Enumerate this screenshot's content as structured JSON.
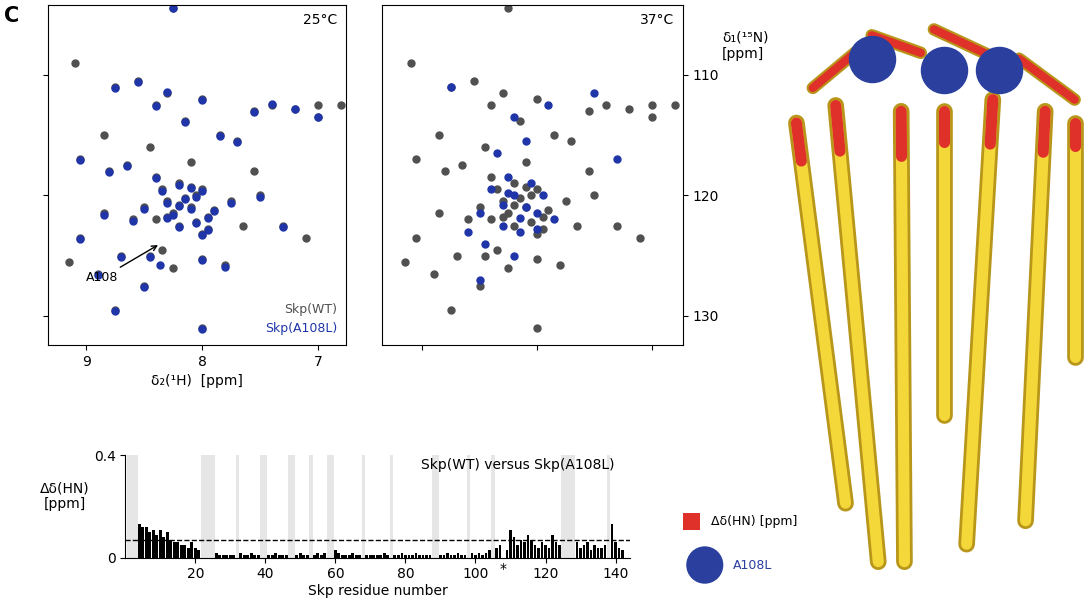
{
  "panel_label": "C",
  "chart_data": [
    {
      "type": "scatter",
      "title": "25°C",
      "x_label": "δ₂(¹H)  [ppm]",
      "xlim": [
        9.33,
        6.76
      ],
      "xticks": [
        9,
        8,
        7
      ],
      "ylim": [
        132.4,
        104.2
      ],
      "yticks": [
        110,
        120,
        130
      ],
      "tick_labels": "x",
      "marker": "o",
      "series": [
        {
          "name": "Skp(WT)",
          "color": "#505050",
          "x": [
            9.1,
            8.25,
            8.55,
            8.75,
            8.3,
            8.4,
            8.0,
            8.15,
            7.55,
            7.4,
            7.2,
            7.0,
            7.0,
            6.8,
            7.85,
            7.7,
            9.05,
            8.65,
            8.8,
            8.4,
            8.2,
            8.0,
            8.3,
            8.1,
            7.9,
            8.5,
            8.6,
            8.2,
            7.95,
            8.05,
            7.75,
            7.5,
            7.3,
            7.1,
            8.85,
            9.05,
            9.15,
            8.9,
            8.7,
            8.45,
            8.35,
            8.0,
            7.8,
            7.65,
            8.75,
            8.0,
            8.5,
            8.25,
            7.55,
            8.85,
            8.45,
            8.1,
            8.15,
            8.25,
            8.35,
            7.95,
            8.05,
            8.2,
            8.1,
            8.3,
            8.0,
            8.4
          ],
          "y": [
            109.0,
            104.5,
            110.5,
            111.0,
            111.5,
            112.5,
            112.0,
            113.8,
            113.0,
            112.5,
            112.8,
            112.5,
            113.5,
            112.5,
            115.0,
            115.5,
            117.0,
            117.5,
            118.0,
            118.5,
            119.0,
            119.5,
            120.5,
            121.0,
            121.2,
            121.0,
            122.0,
            122.5,
            122.8,
            120.0,
            120.5,
            120.0,
            122.5,
            123.5,
            121.5,
            123.5,
            125.5,
            126.5,
            125.0,
            125.0,
            124.5,
            125.3,
            125.8,
            122.5,
            129.5,
            131.0,
            127.5,
            126.0,
            118.0,
            115.0,
            116.0,
            117.2,
            120.2,
            121.5,
            119.5,
            121.8,
            122.2,
            120.8,
            119.3,
            121.8,
            123.2,
            122.0
          ]
        },
        {
          "name": "Skp(A108L)",
          "color": "#1f35a8",
          "x": [
            8.25,
            8.55,
            8.75,
            8.3,
            8.4,
            8.0,
            8.15,
            7.55,
            7.4,
            7.2,
            7.0,
            7.85,
            7.7,
            9.05,
            8.65,
            8.8,
            8.4,
            8.2,
            8.0,
            8.3,
            8.1,
            7.9,
            8.5,
            8.6,
            8.2,
            7.95,
            8.05,
            7.75,
            7.5,
            7.3,
            8.85,
            9.05,
            8.9,
            8.7,
            8.45,
            8.36,
            8.0,
            7.8,
            8.75,
            8.0,
            8.5,
            8.15,
            8.25,
            8.35,
            7.95,
            8.05,
            8.2,
            8.1,
            8.3,
            8.0
          ],
          "y": [
            104.5,
            110.6,
            111.1,
            111.4,
            112.6,
            112.1,
            113.9,
            113.1,
            112.4,
            112.8,
            113.5,
            115.1,
            115.6,
            117.1,
            117.6,
            118.1,
            118.6,
            119.1,
            119.6,
            120.6,
            121.1,
            121.3,
            121.1,
            122.1,
            122.6,
            122.9,
            120.1,
            120.6,
            120.1,
            122.6,
            121.6,
            123.6,
            126.6,
            125.1,
            125.1,
            125.8,
            125.4,
            125.9,
            129.6,
            131.1,
            127.6,
            120.3,
            121.6,
            119.6,
            121.9,
            122.3,
            120.9,
            119.4,
            121.9,
            123.3
          ]
        }
      ],
      "annotations": [
        {
          "text": "A108",
          "x": 8.36,
          "y": 124.0
        }
      ]
    },
    {
      "type": "scatter",
      "title": "37°C",
      "y_label": "δ₁(¹⁵N)\n[ppm]",
      "xlim": [
        9.35,
        6.73
      ],
      "xticks": [
        9,
        8,
        7
      ],
      "ylim": [
        132.4,
        104.2
      ],
      "yticks": [
        110,
        120,
        130
      ],
      "tick_labels": "y",
      "marker": "o",
      "series": [
        {
          "name": "Skp(WT)",
          "color": "#505050",
          "x": [
            9.1,
            8.25,
            8.55,
            8.75,
            8.3,
            8.4,
            8.0,
            8.15,
            7.55,
            7.4,
            7.2,
            7.0,
            7.0,
            6.8,
            7.85,
            7.7,
            9.05,
            8.65,
            8.8,
            8.4,
            8.2,
            8.0,
            8.3,
            8.1,
            7.9,
            8.5,
            8.6,
            8.2,
            7.95,
            8.05,
            7.75,
            7.5,
            7.3,
            7.1,
            8.85,
            9.05,
            9.15,
            8.9,
            8.7,
            8.45,
            8.35,
            8.0,
            7.8,
            7.65,
            8.75,
            8.0,
            8.5,
            8.25,
            7.55,
            8.85,
            8.45,
            8.1,
            8.15,
            8.25,
            8.35,
            7.95,
            8.05,
            8.2,
            8.1,
            8.3,
            8.0,
            8.4
          ],
          "y": [
            109.0,
            104.5,
            110.5,
            111.0,
            111.5,
            112.5,
            112.0,
            113.8,
            113.0,
            112.5,
            112.8,
            112.5,
            113.5,
            112.5,
            115.0,
            115.5,
            117.0,
            117.5,
            118.0,
            118.5,
            119.0,
            119.5,
            120.5,
            121.0,
            121.2,
            121.0,
            122.0,
            122.5,
            122.8,
            120.0,
            120.5,
            120.0,
            122.5,
            123.5,
            121.5,
            123.5,
            125.5,
            126.5,
            125.0,
            125.0,
            124.5,
            125.3,
            125.8,
            122.5,
            129.5,
            131.0,
            127.5,
            126.0,
            118.0,
            115.0,
            116.0,
            117.2,
            120.2,
            121.5,
            119.5,
            121.8,
            122.2,
            120.8,
            119.3,
            121.8,
            123.2,
            122.0
          ]
        },
        {
          "name": "Skp(A108L)",
          "color": "#1f35a8",
          "x": [
            8.4,
            8.2,
            8.1,
            8.0,
            8.3,
            8.15,
            7.95,
            8.5,
            8.25,
            8.05,
            7.85,
            8.45,
            8.2,
            8.6,
            8.35,
            8.1,
            7.9,
            7.5,
            8.75,
            8.2,
            7.3,
            8.5,
            8.3,
            8.0,
            8.15,
            8.25
          ],
          "y": [
            119.5,
            120.0,
            121.0,
            121.5,
            122.5,
            123.0,
            120.0,
            121.5,
            118.5,
            119.0,
            122.0,
            124.0,
            125.0,
            123.0,
            116.5,
            115.5,
            112.5,
            111.5,
            111.0,
            113.5,
            117.0,
            127.0,
            120.8,
            122.8,
            121.9,
            119.8
          ]
        }
      ]
    },
    {
      "type": "bar",
      "title": "Skp(WT) versus Skp(A108L)",
      "x_label": "Skp residue number",
      "y_label": "Δδ(HN)\n[ppm]",
      "color": "#000000",
      "x": [
        1,
        2,
        3,
        4,
        5,
        6,
        7,
        8,
        9,
        10,
        11,
        12,
        13,
        14,
        15,
        16,
        17,
        18,
        19,
        20,
        21,
        22,
        23,
        24,
        25,
        26,
        27,
        28,
        29,
        30,
        31,
        32,
        33,
        34,
        35,
        36,
        37,
        38,
        39,
        40,
        41,
        42,
        43,
        44,
        45,
        46,
        47,
        48,
        49,
        50,
        51,
        52,
        53,
        54,
        55,
        56,
        57,
        58,
        59,
        60,
        61,
        62,
        63,
        64,
        65,
        66,
        67,
        68,
        69,
        70,
        71,
        72,
        73,
        74,
        75,
        76,
        77,
        78,
        79,
        80,
        81,
        82,
        83,
        84,
        85,
        86,
        87,
        88,
        89,
        90,
        91,
        92,
        93,
        94,
        95,
        96,
        97,
        98,
        99,
        100,
        101,
        102,
        103,
        104,
        105,
        106,
        107,
        108,
        109,
        110,
        111,
        112,
        113,
        114,
        115,
        116,
        117,
        118,
        119,
        120,
        121,
        122,
        123,
        124,
        125,
        126,
        127,
        128,
        129,
        130,
        131,
        132,
        133,
        134,
        135,
        136,
        137,
        138,
        139,
        140,
        141,
        142
      ],
      "values": [
        null,
        null,
        null,
        0.13,
        0.12,
        0.12,
        0.1,
        0.11,
        0.09,
        0.11,
        0.08,
        0.1,
        0.07,
        0.06,
        0.06,
        0.05,
        0.05,
        0.04,
        0.06,
        0.04,
        0.03,
        null,
        null,
        null,
        null,
        0.02,
        0.01,
        0.01,
        0.01,
        0.01,
        0.01,
        null,
        0.02,
        0.01,
        0.01,
        0.02,
        0.01,
        0.01,
        null,
        null,
        0.01,
        0.01,
        0.02,
        0.01,
        0.01,
        0.01,
        null,
        null,
        0.01,
        0.02,
        0.01,
        0.01,
        null,
        0.01,
        0.02,
        0.01,
        0.02,
        null,
        null,
        0.03,
        0.02,
        0.01,
        0.01,
        0.01,
        0.02,
        0.01,
        0.01,
        null,
        0.01,
        0.01,
        0.01,
        0.01,
        0.01,
        0.02,
        0.01,
        null,
        0.01,
        0.01,
        0.02,
        0.01,
        0.01,
        0.01,
        0.02,
        0.01,
        0.01,
        0.01,
        0.01,
        null,
        null,
        0.01,
        0.01,
        0.02,
        0.01,
        0.01,
        0.02,
        0.01,
        0.01,
        null,
        0.02,
        0.01,
        0.02,
        0.01,
        0.02,
        0.03,
        null,
        0.04,
        0.05,
        null,
        0.03,
        0.11,
        0.08,
        0.05,
        0.07,
        0.06,
        0.09,
        0.07,
        0.05,
        0.04,
        0.06,
        0.05,
        0.04,
        0.09,
        0.06,
        0.05,
        null,
        null,
        null,
        null,
        0.06,
        0.04,
        0.05,
        0.06,
        0.03,
        0.05,
        0.04,
        0.04,
        0.05,
        null,
        0.13,
        0.06,
        0.04,
        0.03
      ],
      "xlim": [
        0,
        144
      ],
      "xticks": [
        20,
        40,
        60,
        80,
        100,
        120,
        140
      ],
      "ylim": [
        0,
        0.4
      ],
      "yticks": [
        0,
        0.4
      ],
      "threshold": 0.07,
      "unassigned_residues": [
        1,
        2,
        3,
        22,
        23,
        24,
        25,
        32,
        39,
        40,
        47,
        48,
        53,
        58,
        59,
        68,
        76,
        88,
        89,
        98,
        105,
        125,
        126,
        127,
        128,
        138
      ],
      "annotations": [
        {
          "text": "*",
          "x": 108
        }
      ]
    }
  ],
  "structure": {
    "legend": [
      {
        "label": "Δδ(HN) [ppm]",
        "color": "#e0302a",
        "marker": "square"
      },
      {
        "label": "A108L",
        "color": "#2a3f9e",
        "marker": "circle"
      }
    ]
  }
}
